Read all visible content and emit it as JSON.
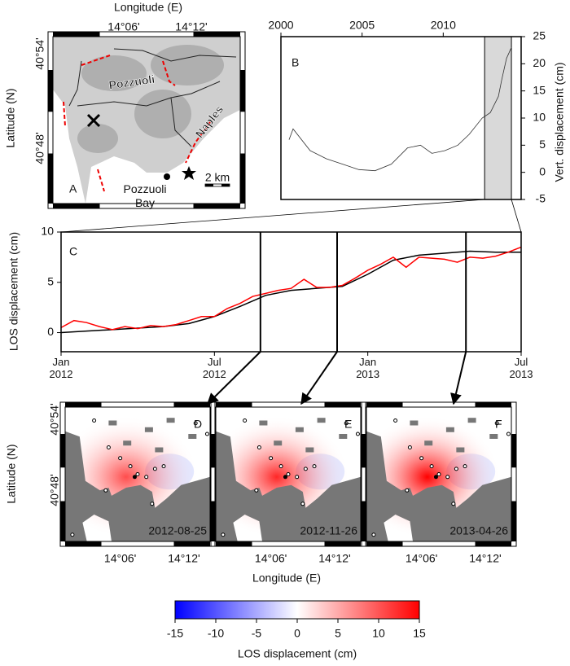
{
  "panel_a": {
    "label": "A",
    "x_axis_label": "Longitude (E)",
    "y_axis_label": "Latitude (N)",
    "xticks": [
      "14°06'",
      "14°12'"
    ],
    "yticks": [
      "40°54'",
      "40°48'"
    ],
    "places": {
      "pozzuoli": "Pozzuoli",
      "naples": "Naples",
      "bay": "Pozzuoli\nBay"
    },
    "scale_bar": "2 km"
  },
  "chart_data": [
    {
      "type": "line",
      "label": "B",
      "y_axis_label": "Vert. displacement (cm)",
      "x": [
        2000.5,
        2000.75,
        2001.8,
        2002.8,
        2003.8,
        2004.8,
        2005.8,
        2006.8,
        2007.8,
        2008.6,
        2009.3,
        2010.1,
        2010.9,
        2011.6,
        2012.4,
        2012.9,
        2013.4,
        2013.6,
        2013.9,
        2014.2
      ],
      "series": [
        {
          "color": "#333333",
          "values": [
            6,
            8,
            4,
            2.5,
            1.5,
            0.5,
            0.3,
            1.5,
            4.5,
            5,
            3.5,
            4,
            5,
            7,
            10,
            11,
            14,
            17,
            21,
            23
          ]
        }
      ],
      "xlim": [
        2000,
        2014.8
      ],
      "xticks": [
        2000,
        2005,
        2010
      ],
      "ylim": [
        -5,
        25
      ],
      "yticks": [
        -5,
        0,
        5,
        10,
        15,
        20,
        25
      ],
      "shade": [
        2012.55,
        2014.2
      ],
      "shade_color": "#d9d9d9"
    },
    {
      "type": "line",
      "label": "C",
      "y_axis_label": "LOS displacement (cm)",
      "series": [
        {
          "color": "#000000",
          "x": [
            2012,
            2012.083,
            2012.167,
            2012.25,
            2012.333,
            2012.417,
            2012.5,
            2012.583,
            2012.667,
            2012.75,
            2012.833,
            2012.917,
            2013,
            2013.083,
            2013.167,
            2013.25,
            2013.333,
            2013.417,
            2013.5
          ],
          "values": [
            0,
            0.15,
            0.3,
            0.45,
            0.6,
            0.9,
            1.6,
            2.6,
            3.7,
            4.2,
            4.4,
            4.6,
            5.8,
            7.2,
            7.7,
            7.9,
            8.1,
            8.0,
            8.0
          ]
        },
        {
          "color": "#ff0000",
          "x": [
            2012,
            2012.042,
            2012.083,
            2012.125,
            2012.167,
            2012.208,
            2012.25,
            2012.292,
            2012.333,
            2012.375,
            2012.417,
            2012.458,
            2012.5,
            2012.542,
            2012.583,
            2012.625,
            2012.667,
            2012.708,
            2012.75,
            2012.792,
            2012.833,
            2012.875,
            2012.917,
            2012.958,
            2013,
            2013.042,
            2013.083,
            2013.125,
            2013.167,
            2013.208,
            2013.25,
            2013.292,
            2013.333,
            2013.375,
            2013.417,
            2013.458,
            2013.5
          ],
          "values": [
            0.5,
            1.2,
            1.0,
            0.6,
            0.3,
            0.6,
            0.4,
            0.7,
            0.6,
            0.8,
            1.2,
            1.6,
            1.6,
            2.4,
            2.9,
            3.6,
            3.9,
            4.2,
            4.4,
            5.3,
            4.5,
            4.5,
            4.7,
            5.4,
            6.2,
            6.8,
            7.5,
            6.5,
            7.5,
            7.4,
            7.3,
            7.0,
            7.5,
            7.4,
            7.6,
            8.0,
            8.5
          ]
        }
      ],
      "xlim": [
        2012,
        2013.5
      ],
      "xticks": [
        {
          "value": 2012,
          "label": "Jan\n2012"
        },
        {
          "value": 2012.5,
          "label": "Jul\n2012"
        },
        {
          "value": 2013,
          "label": "Jan\n2013"
        },
        {
          "value": 2013.5,
          "label": "Jul\n2013"
        }
      ],
      "ylim": [
        -1.9,
        10
      ],
      "yticks": [
        0,
        5,
        10
      ],
      "markers": [
        2012.65,
        2012.9,
        2013.32
      ]
    }
  ],
  "maps": {
    "x_axis_label": "Longitude (E)",
    "y_axis_label": "Latitude (N)",
    "xticks": [
      "14°06'",
      "14°12'"
    ],
    "yticks": [
      "40°54'",
      "40°48'"
    ],
    "panels": [
      {
        "label": "D",
        "date": "2012-08-25"
      },
      {
        "label": "E",
        "date": "2012-11-26"
      },
      {
        "label": "F",
        "date": "2013-04-26"
      }
    ]
  },
  "colorbar": {
    "label": "LOS displacement (cm)",
    "lim": [
      -15,
      15
    ],
    "ticks": [
      -15,
      -10,
      -5,
      0,
      5,
      10,
      15
    ],
    "colors": [
      "#0000ff",
      "#ffffff",
      "#ff0000"
    ]
  }
}
